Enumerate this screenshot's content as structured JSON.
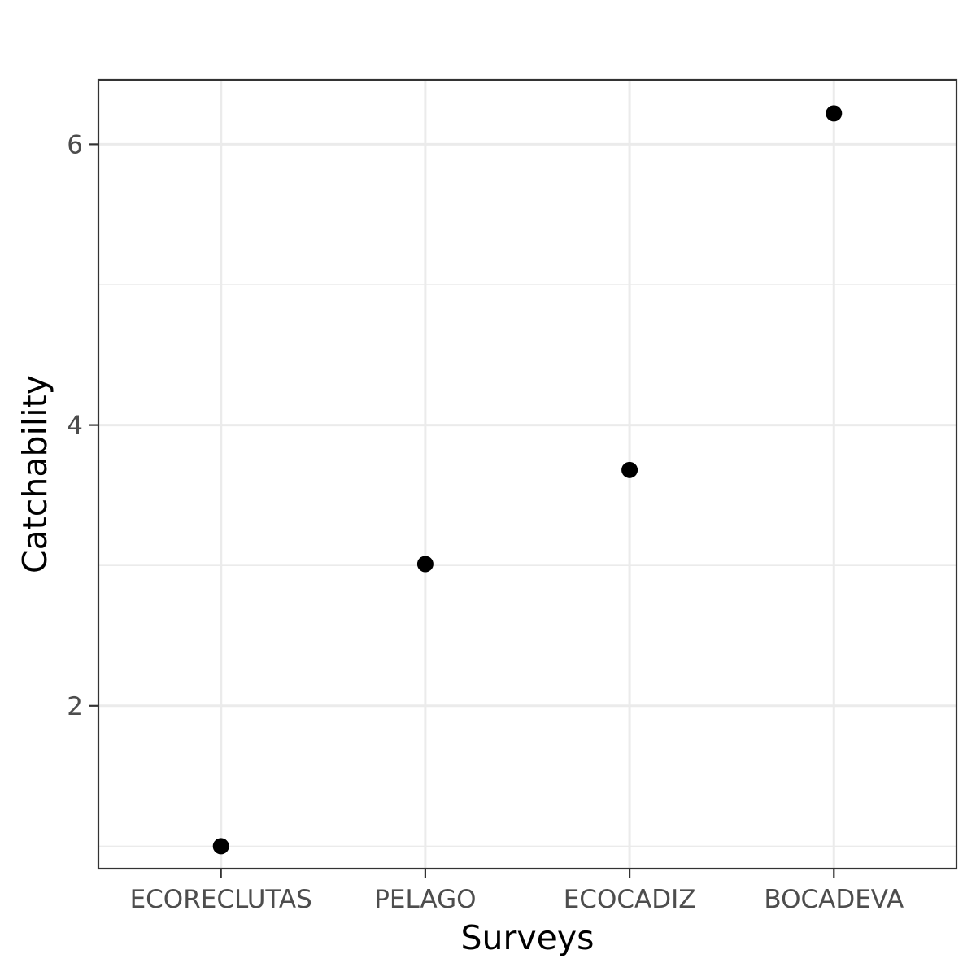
{
  "chart_data": {
    "type": "scatter",
    "title": "",
    "xlabel": "Surveys",
    "ylabel": "Catchability",
    "categories": [
      "ECORECLUTAS",
      "PELAGO",
      "ECOCADIZ",
      "BOCADEVA"
    ],
    "series": [
      {
        "values": [
          1.0,
          3.01,
          3.68,
          6.22
        ]
      }
    ],
    "ylim": [
      0.84,
      6.46
    ],
    "y_major_ticks": [
      2,
      4,
      6
    ],
    "y_minor_gridlines": [
      1,
      3,
      5
    ],
    "grid": true,
    "legend": "none",
    "point_color": "#000000"
  }
}
